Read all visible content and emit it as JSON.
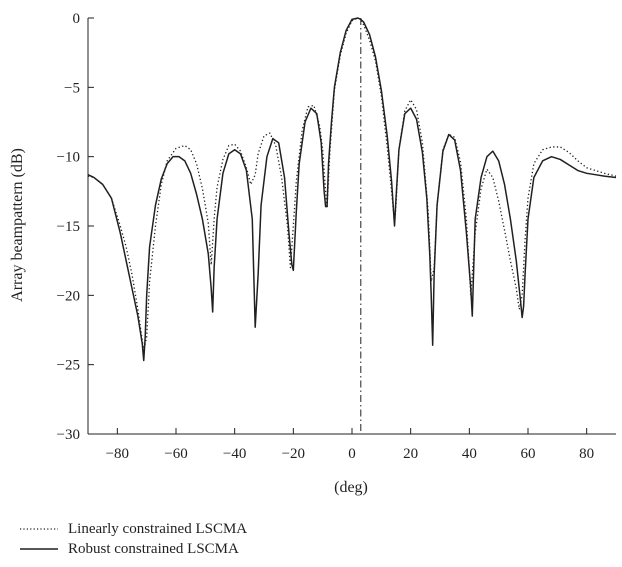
{
  "chart_data": {
    "type": "line",
    "title": "",
    "xlabel": "(deg)",
    "ylabel": "Array beampattern (dB)",
    "xlim": [
      -90,
      90
    ],
    "ylim": [
      -30,
      0
    ],
    "xticks": [
      -80,
      -60,
      -40,
      -20,
      0,
      20,
      40,
      60,
      80
    ],
    "yticks": [
      0,
      -5,
      -10,
      -15,
      -20,
      -25,
      -30
    ],
    "xtick_labels": [
      "−80",
      "−60",
      "−40",
      "−20",
      "0",
      "20",
      "40",
      "60",
      "80"
    ],
    "ytick_labels": [
      "0",
      "−5",
      "−10",
      "−15",
      "−20",
      "−25",
      "−30"
    ],
    "grid": false,
    "legend_position": "bottom-left, below plot",
    "reference_line": {
      "x": 3,
      "style": "dash-dot"
    },
    "series": [
      {
        "name": "Linearly constrained LSCMA",
        "style": "dotted",
        "color": "#231f20",
        "x": [
          -90,
          -88,
          -85,
          -82,
          -79,
          -77,
          -75,
          -73,
          -71,
          -70,
          -69,
          -67,
          -65,
          -63,
          -60,
          -57,
          -55,
          -53,
          -51,
          -49,
          -48,
          -47,
          -46,
          -44,
          -42,
          -40,
          -38,
          -36,
          -34.5,
          -33,
          -32,
          -30,
          -28,
          -26,
          -24,
          -22,
          -21,
          -20,
          -19,
          -17,
          -15,
          -13,
          -11,
          -10,
          -9,
          -8.5,
          -7.5,
          -6,
          -4,
          -2,
          0,
          2,
          3,
          4,
          6,
          8,
          10,
          12,
          13.5,
          14.5,
          15,
          16,
          18,
          20,
          22,
          24,
          26,
          27,
          28,
          29,
          31,
          33,
          35,
          37,
          39,
          40.5,
          41,
          42,
          44,
          46,
          48,
          50,
          52,
          54,
          56,
          57,
          58,
          59,
          60,
          62,
          65,
          68,
          71,
          74,
          77,
          80,
          83,
          86,
          90
        ],
        "y": [
          -11.4,
          -11.5,
          -12,
          -13,
          -15,
          -16.5,
          -18.5,
          -21,
          -24,
          -23,
          -19,
          -15,
          -12,
          -10.3,
          -9.4,
          -9.2,
          -9.5,
          -10.5,
          -12.3,
          -14.8,
          -17.8,
          -14.5,
          -12.2,
          -10.2,
          -9.2,
          -9.1,
          -9.6,
          -10.8,
          -12,
          -11.3,
          -9.8,
          -8.5,
          -8.3,
          -9.2,
          -11.5,
          -15,
          -18,
          -15,
          -11.8,
          -8.1,
          -6.4,
          -6.3,
          -7.8,
          -9.5,
          -12.5,
          -13.7,
          -9.5,
          -5.2,
          -2.7,
          -1.1,
          -0.2,
          0,
          -0.1,
          -0.5,
          -1.6,
          -3.1,
          -5.6,
          -9.3,
          -12.5,
          -14.8,
          -13.5,
          -9.5,
          -6.7,
          -5.9,
          -6.6,
          -9,
          -14,
          -19,
          -18,
          -13.5,
          -9.5,
          -8.4,
          -8.6,
          -10.4,
          -14.5,
          -20,
          -18.5,
          -15.5,
          -12.3,
          -10.9,
          -11.5,
          -13.2,
          -15.3,
          -17.5,
          -19.5,
          -21,
          -20,
          -16,
          -13,
          -10.5,
          -9.5,
          -9.3,
          -9.3,
          -9.7,
          -10.3,
          -10.8,
          -11,
          -11.2,
          -11.4
        ]
      },
      {
        "name": "Robust constrained LSCMA",
        "style": "solid",
        "color": "#231f20",
        "x": [
          -90,
          -88,
          -85,
          -82,
          -79,
          -77,
          -75,
          -73,
          -71.5,
          -71,
          -70.5,
          -70,
          -69,
          -67,
          -65,
          -63,
          -61,
          -59,
          -57,
          -55,
          -53,
          -51,
          -49,
          -48,
          -47.5,
          -47,
          -46,
          -44,
          -42,
          -40,
          -38,
          -36,
          -34,
          -33,
          -32,
          -31,
          -29,
          -27,
          -25,
          -23,
          -21.5,
          -20.5,
          -20,
          -19,
          -18,
          -16,
          -14,
          -12,
          -10.5,
          -9.5,
          -9,
          -8.5,
          -8,
          -7,
          -6,
          -4,
          -2,
          0,
          2,
          3,
          4,
          6,
          8,
          10,
          12,
          13.5,
          14.5,
          15,
          16,
          18,
          20,
          22,
          24,
          25.5,
          26.5,
          27,
          27.5,
          28,
          29,
          31,
          33,
          35,
          37,
          39,
          40.5,
          41,
          41.5,
          42,
          44,
          46,
          48,
          50,
          52,
          54,
          56,
          57.5,
          58,
          58.5,
          59,
          60,
          62,
          65,
          68,
          71,
          74,
          77,
          80,
          83,
          86,
          90
        ],
        "y": [
          -11.3,
          -11.5,
          -12,
          -13,
          -15.5,
          -17.5,
          -19.5,
          -21.5,
          -23.5,
          -24.7,
          -23,
          -20,
          -16.5,
          -13.5,
          -11.6,
          -10.5,
          -10,
          -10,
          -10.3,
          -11.2,
          -12.7,
          -14.5,
          -17,
          -19.5,
          -21.2,
          -18,
          -14.5,
          -11.2,
          -9.8,
          -9.5,
          -9.8,
          -11,
          -14.5,
          -22.3,
          -18.5,
          -13.5,
          -10,
          -8.7,
          -9,
          -11.5,
          -15.5,
          -17.8,
          -18.2,
          -14,
          -10.5,
          -7.5,
          -6.5,
          -6.9,
          -9,
          -12.5,
          -13.6,
          -13.6,
          -10.5,
          -7.5,
          -5,
          -2.5,
          -0.9,
          -0.1,
          0,
          -0.1,
          -0.3,
          -1.2,
          -2.8,
          -5.2,
          -8.5,
          -11.8,
          -15,
          -13,
          -9.5,
          -6.9,
          -6.5,
          -7.3,
          -9.7,
          -13,
          -17,
          -20,
          -23.6,
          -18.5,
          -13.5,
          -9.6,
          -8.4,
          -8.8,
          -11,
          -15.5,
          -19.5,
          -21.5,
          -18,
          -14.5,
          -11.5,
          -10,
          -9.6,
          -10.3,
          -12,
          -14.5,
          -17.5,
          -20.5,
          -21.6,
          -20.8,
          -18.5,
          -14.5,
          -11.5,
          -10.3,
          -10,
          -10.2,
          -10.6,
          -11,
          -11.2,
          -11.3,
          -11.4,
          -11.5
        ]
      }
    ]
  }
}
